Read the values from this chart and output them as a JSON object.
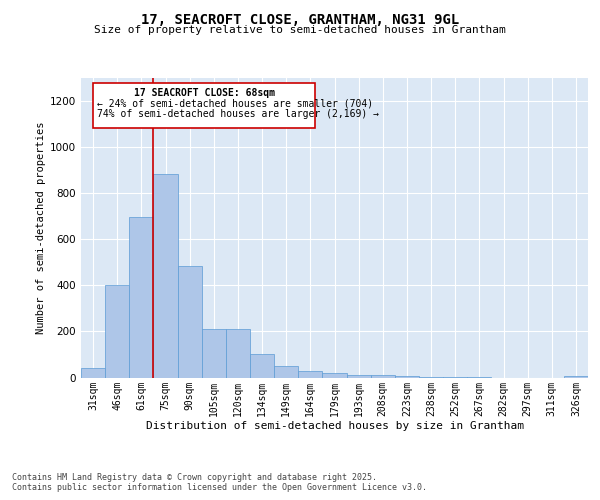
{
  "title1": "17, SEACROFT CLOSE, GRANTHAM, NG31 9GL",
  "title2": "Size of property relative to semi-detached houses in Grantham",
  "xlabel": "Distribution of semi-detached houses by size in Grantham",
  "ylabel": "Number of semi-detached properties",
  "categories": [
    "31sqm",
    "46sqm",
    "61sqm",
    "75sqm",
    "90sqm",
    "105sqm",
    "120sqm",
    "134sqm",
    "149sqm",
    "164sqm",
    "179sqm",
    "193sqm",
    "208sqm",
    "223sqm",
    "238sqm",
    "252sqm",
    "267sqm",
    "282sqm",
    "297sqm",
    "311sqm",
    "326sqm"
  ],
  "values": [
    40,
    400,
    695,
    880,
    485,
    210,
    210,
    100,
    48,
    28,
    20,
    10,
    10,
    5,
    2,
    2,
    1,
    0,
    0,
    0,
    5
  ],
  "bar_color": "#aec6e8",
  "bar_edgecolor": "#5b9bd5",
  "annotation_text1": "17 SEACROFT CLOSE: 68sqm",
  "annotation_text2": "← 24% of semi-detached houses are smaller (704)",
  "annotation_text3": "74% of semi-detached houses are larger (2,169) →",
  "vline_color": "#cc0000",
  "box_edgecolor": "#cc0000",
  "ylim": [
    0,
    1300
  ],
  "yticks": [
    0,
    200,
    400,
    600,
    800,
    1000,
    1200
  ],
  "grid_color": "#b0c4de",
  "bg_color": "#dce8f5",
  "footnote1": "Contains HM Land Registry data © Crown copyright and database right 2025.",
  "footnote2": "Contains public sector information licensed under the Open Government Licence v3.0."
}
